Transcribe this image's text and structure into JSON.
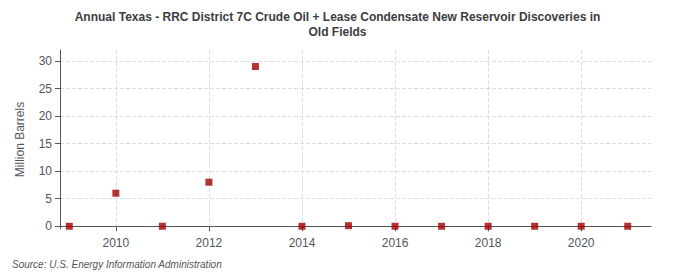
{
  "chart_data": {
    "type": "scatter",
    "title": "Annual Texas - RRC District 7C Crude Oil + Lease Condensate New Reservoir Discoveries in\nOld Fields",
    "ylabel": "Million Barrels",
    "source": "Source: U.S. Energy Information Administration",
    "x": [
      2009,
      2010,
      2011,
      2012,
      2013,
      2014,
      2015,
      2016,
      2017,
      2018,
      2019,
      2020,
      2021
    ],
    "values": [
      0.0,
      6.0,
      0.0,
      8.0,
      29.0,
      0.0,
      0.1,
      0.0,
      0.0,
      0.0,
      0.0,
      0.0,
      0.0
    ],
    "color": "#A00000",
    "marker": "square",
    "xlim": [
      2008.8,
      2021.5
    ],
    "ylim": [
      -0.5,
      32
    ],
    "xticks": [
      2010,
      2012,
      2014,
      2016,
      2018,
      2020
    ],
    "yticks": [
      0,
      5,
      10,
      15,
      20,
      25,
      30
    ],
    "grid": true
  }
}
